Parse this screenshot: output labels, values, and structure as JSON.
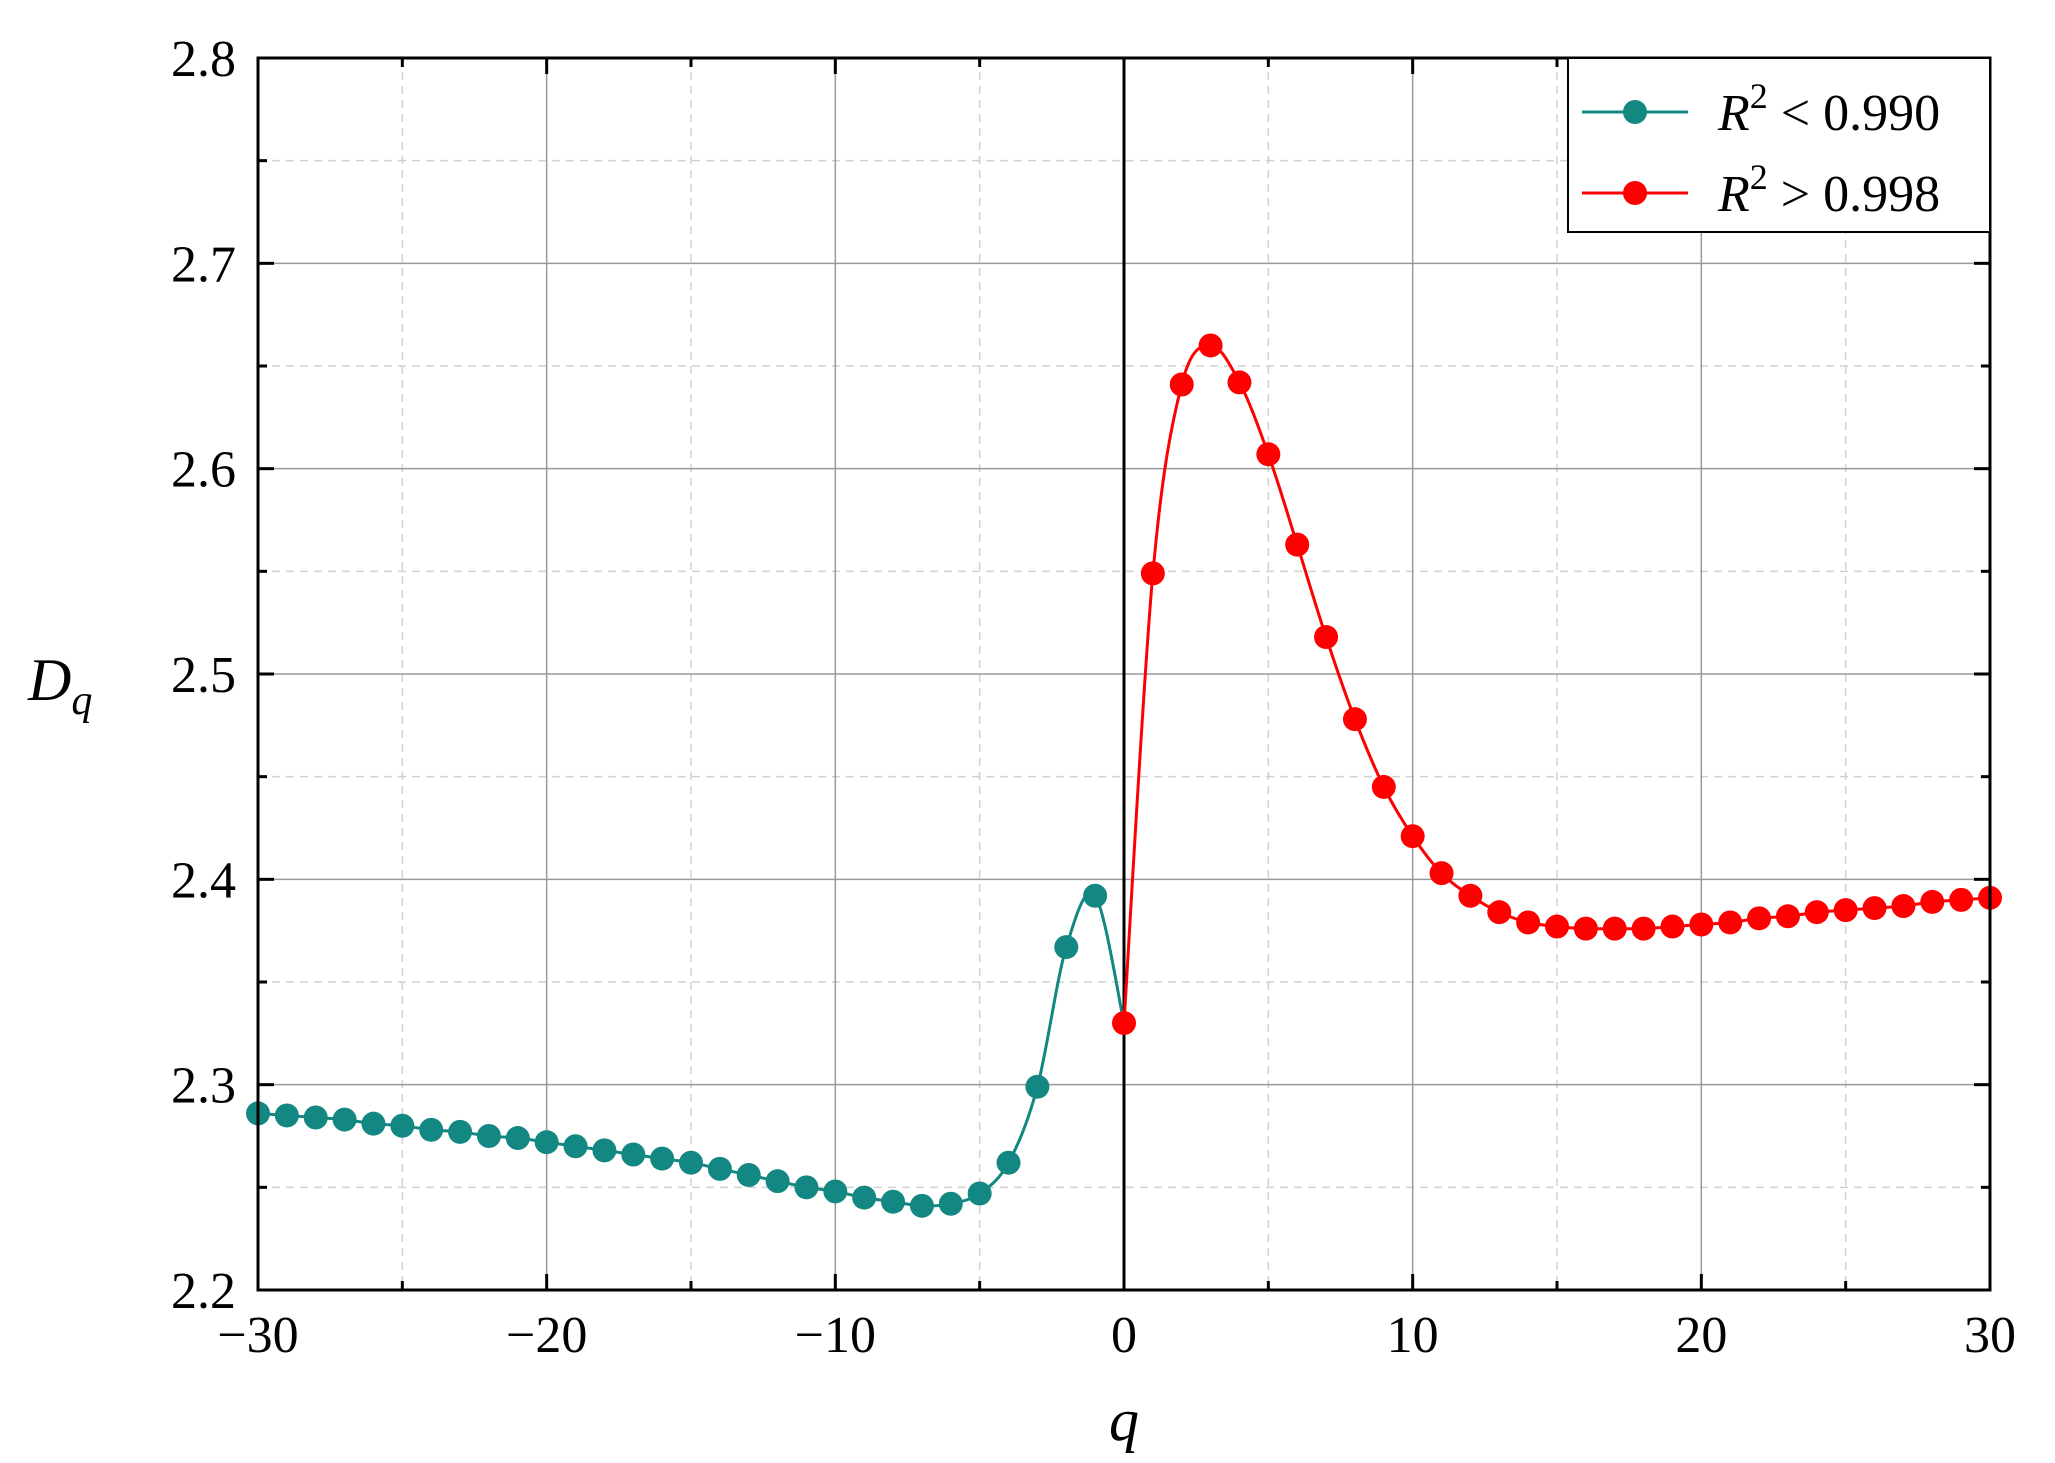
{
  "chart_data": {
    "type": "line",
    "title": "",
    "xlabel": "q",
    "ylabel": "D",
    "ylabel_sub": "q",
    "xlim": [
      -30,
      30
    ],
    "ylim": [
      2.2,
      2.8
    ],
    "xticks": [
      -30,
      -20,
      -10,
      0,
      10,
      20,
      30
    ],
    "xtick_labels": [
      "−30",
      "−20",
      "−10",
      "0",
      "10",
      "20",
      "30"
    ],
    "yticks": [
      2.2,
      2.3,
      2.4,
      2.5,
      2.6,
      2.7,
      2.8
    ],
    "ytick_labels": [
      "2.2",
      "2.3",
      "2.4",
      "2.5",
      "2.6",
      "2.7",
      "2.8"
    ],
    "grid": true,
    "legend_position": "top-right",
    "reference_line_x": 0,
    "series": [
      {
        "legend_var": "R",
        "legend_sup": "2",
        "legend_rest": " < 0.990",
        "color": "#138781",
        "x": [
          -30,
          -29,
          -28,
          -27,
          -26,
          -25,
          -24,
          -23,
          -22,
          -21,
          -20,
          -19,
          -18,
          -17,
          -16,
          -15,
          -14,
          -13,
          -12,
          -11,
          -10,
          -9,
          -8,
          -7,
          -6,
          -5,
          -4,
          -3,
          -2,
          -1
        ],
        "y": [
          2.286,
          2.285,
          2.284,
          2.283,
          2.281,
          2.28,
          2.278,
          2.277,
          2.275,
          2.274,
          2.272,
          2.27,
          2.268,
          2.266,
          2.264,
          2.262,
          2.259,
          2.256,
          2.253,
          2.25,
          2.248,
          2.245,
          2.243,
          2.241,
          2.242,
          2.247,
          2.262,
          2.299,
          2.367,
          2.392
        ]
      },
      {
        "legend_var": "R",
        "legend_sup": "2",
        "legend_rest": " > 0.998",
        "color": "#ff0000",
        "x": [
          0,
          1,
          2,
          3,
          4,
          5,
          6,
          7,
          8,
          9,
          10,
          11,
          12,
          13,
          14,
          15,
          16,
          17,
          18,
          19,
          20,
          21,
          22,
          23,
          24,
          25,
          26,
          27,
          28,
          29,
          30
        ],
        "y": [
          2.33,
          2.549,
          2.641,
          2.66,
          2.642,
          2.607,
          2.563,
          2.518,
          2.478,
          2.445,
          2.421,
          2.403,
          2.392,
          2.384,
          2.379,
          2.377,
          2.376,
          2.376,
          2.376,
          2.377,
          2.378,
          2.379,
          2.381,
          2.382,
          2.384,
          2.385,
          2.386,
          2.387,
          2.389,
          2.39,
          2.391
        ]
      }
    ]
  }
}
